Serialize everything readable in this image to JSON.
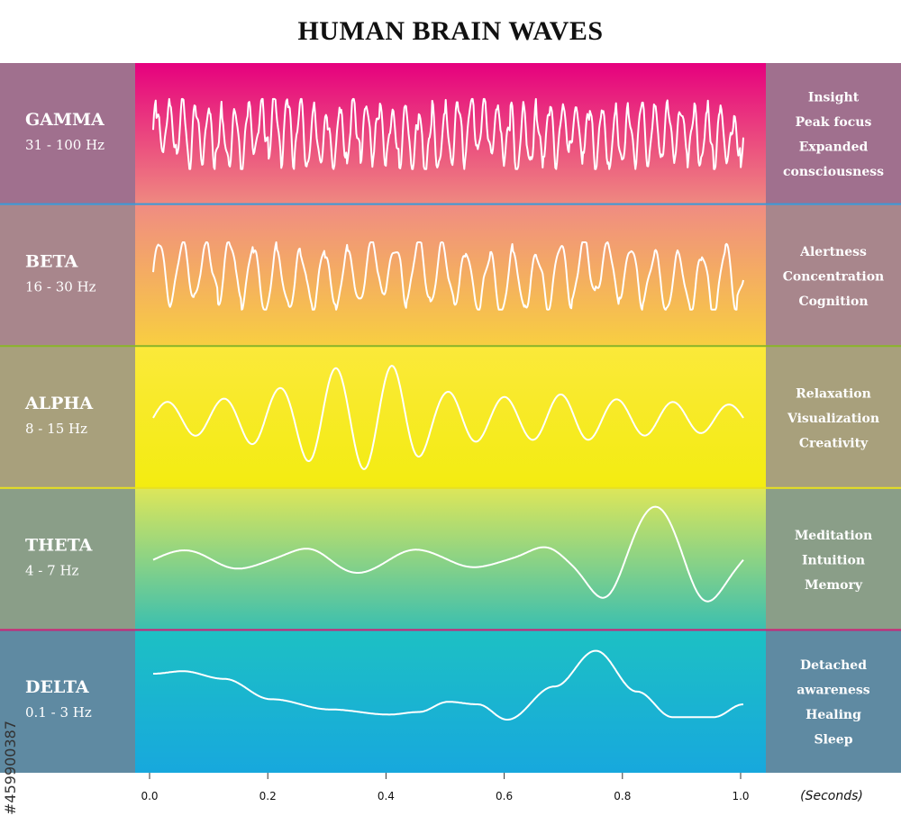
{
  "chart_data": {
    "type": "line",
    "title": "HUMAN BRAIN WAVES",
    "x_unit": "(Seconds)",
    "x_ticks": [
      "0.0",
      "0.2",
      "0.4",
      "0.6",
      "0.8",
      "1.0"
    ],
    "xlim": [
      0,
      1
    ],
    "bands": [
      {
        "name": "GAMMA",
        "range": "31 - 100 Hz",
        "effects": [
          "Insight",
          "Peak focus",
          "Expanded",
          "consciousness"
        ],
        "divider_color": "#3a9ad9",
        "gradient": [
          "#e6007e",
          "#ef8a80"
        ],
        "side_color": "#a0708e",
        "wave": {
          "freq": 45,
          "amp": 0.5,
          "seed": 11,
          "jitter": 0.9,
          "lowfreq": 6,
          "lowamp": 0.05
        }
      },
      {
        "name": "BETA",
        "range": "16 - 30 Hz",
        "effects": [
          "Alertness",
          "Concentration",
          "Cognition"
        ],
        "divider_color": "#8ab52a",
        "gradient": [
          "#f08c82",
          "#f8cf40"
        ],
        "side_color": "#a8868c",
        "wave": {
          "freq": 25,
          "amp": 0.48,
          "seed": 23,
          "jitter": 0.6,
          "lowfreq": 3,
          "lowamp": 0.05
        }
      },
      {
        "name": "ALPHA",
        "range": "8 - 15 Hz",
        "effects": [
          "Relaxation",
          "Visualization",
          "Creativity"
        ],
        "divider_color": "#e8e020",
        "gradient": [
          "#fbe93a",
          "#f3ec10"
        ],
        "side_color": "#a8a07c",
        "wave": {
          "freq": 10.5,
          "amp": 0.82,
          "seed": 7,
          "jitter": 0.0,
          "envelope": [
            0.3,
            0.35,
            0.55,
            0.95,
            1.0,
            0.5,
            0.4,
            0.45,
            0.35,
            0.3,
            0.25
          ]
        }
      },
      {
        "name": "THETA",
        "range": "4 - 7 Hz",
        "effects": [
          "Meditation",
          "Intuition",
          "Memory"
        ],
        "divider_color": "#cc2277",
        "gradient": [
          "#dce65a",
          "#3abfb0"
        ],
        "side_color": "#8a9e88",
        "wave": {
          "freq": 5,
          "amp": 0.9,
          "seed": 3,
          "jitter": 0.0,
          "envelope": [
            0.15,
            0.18,
            0.12,
            0.25,
            0.2,
            0.15,
            0.1,
            0.3,
            0.9,
            0.95,
            0.4
          ]
        }
      },
      {
        "name": "DELTA",
        "range": "0.1 - 3 Hz",
        "effects": [
          "Detached",
          "awareness",
          "Healing",
          "Sleep"
        ],
        "divider_color": "",
        "gradient": [
          "#1dc0c4",
          "#17a8dd"
        ],
        "side_color": "#5f8aa2",
        "wave": {
          "custom": true,
          "amp": 0.8
        }
      }
    ]
  },
  "watermark": "#459900387"
}
